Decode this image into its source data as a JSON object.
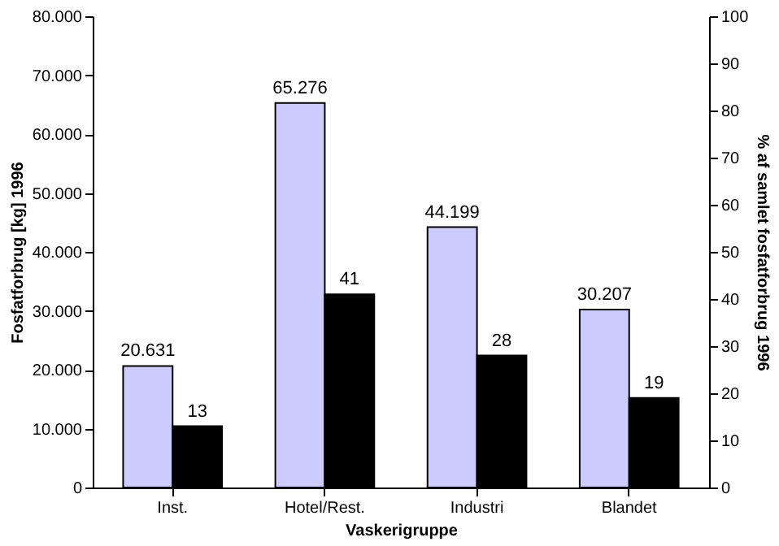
{
  "chart_data": {
    "type": "bar",
    "xlabel": "Vaskerigruppe",
    "ylabel": "Fosfatforbrug [kg] 1996",
    "y2label": "% af samlet fosfatforbrug 1996",
    "categories": [
      "Inst.",
      "Hotel/Rest.",
      "Industri",
      "Blandet"
    ],
    "series": [
      {
        "color": "#ccccff",
        "values": [
          20631,
          65276,
          44199,
          30207
        ],
        "value_labels": [
          "20.631",
          "65.276",
          "44.199",
          "30.207"
        ]
      },
      {
        "color": "#000000",
        "values": [
          13,
          41,
          28,
          19
        ],
        "axis": "y2",
        "value_labels": [
          "13",
          "41",
          "28",
          "19"
        ]
      }
    ],
    "ylim": [
      0,
      80000
    ],
    "yticks": [
      0,
      {
        "value": 10000,
        "label": "10.000"
      },
      {
        "value": 20000,
        "label": "20.000"
      },
      {
        "value": 30000,
        "label": "30.000"
      },
      {
        "value": 40000,
        "label": "40.000"
      },
      {
        "value": 50000,
        "label": "50.000"
      },
      {
        "value": 60000,
        "label": "60.000"
      },
      {
        "value": 70000,
        "label": "70.000"
      },
      {
        "value": 80000,
        "label": "80.000"
      }
    ],
    "y2lim": [
      0,
      100
    ],
    "y2ticks": [
      0,
      10,
      20,
      30,
      40,
      50,
      60,
      70,
      80,
      90,
      100
    ],
    "grid": false
  }
}
